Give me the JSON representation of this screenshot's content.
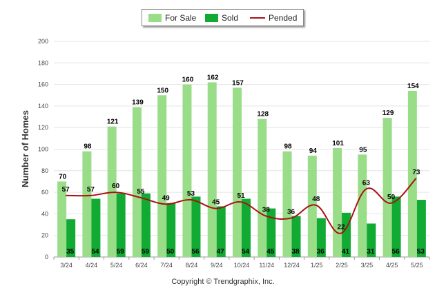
{
  "chart_data": {
    "type": "bar",
    "title": "",
    "xlabel": "",
    "ylabel": "Number of Homes",
    "ylim": [
      0,
      200
    ],
    "yticks": [
      0,
      20,
      40,
      60,
      80,
      100,
      120,
      140,
      160,
      180,
      200
    ],
    "categories": [
      "3/24",
      "4/24",
      "5/24",
      "6/24",
      "7/24",
      "8/24",
      "9/24",
      "10/24",
      "11/24",
      "12/24",
      "1/25",
      "2/25",
      "3/25",
      "4/25",
      "5/25"
    ],
    "series": [
      {
        "name": "For Sale",
        "type": "bar",
        "color": "#99dd88",
        "values": [
          70,
          98,
          121,
          139,
          150,
          160,
          162,
          157,
          128,
          98,
          94,
          101,
          95,
          129,
          154
        ]
      },
      {
        "name": "Sold",
        "type": "bar",
        "color": "#11aa33",
        "values": [
          35,
          54,
          59,
          59,
          50,
          56,
          47,
          54,
          45,
          38,
          36,
          41,
          31,
          56,
          53
        ]
      },
      {
        "name": "Pended",
        "type": "line",
        "color": "#aa1111",
        "values": [
          57,
          57,
          60,
          55,
          49,
          53,
          45,
          51,
          38,
          36,
          48,
          22,
          63,
          50,
          73
        ]
      }
    ],
    "grid": true,
    "legend": "top-center"
  },
  "footer": {
    "copyright": "Copyright © Trendgraphix, Inc."
  }
}
